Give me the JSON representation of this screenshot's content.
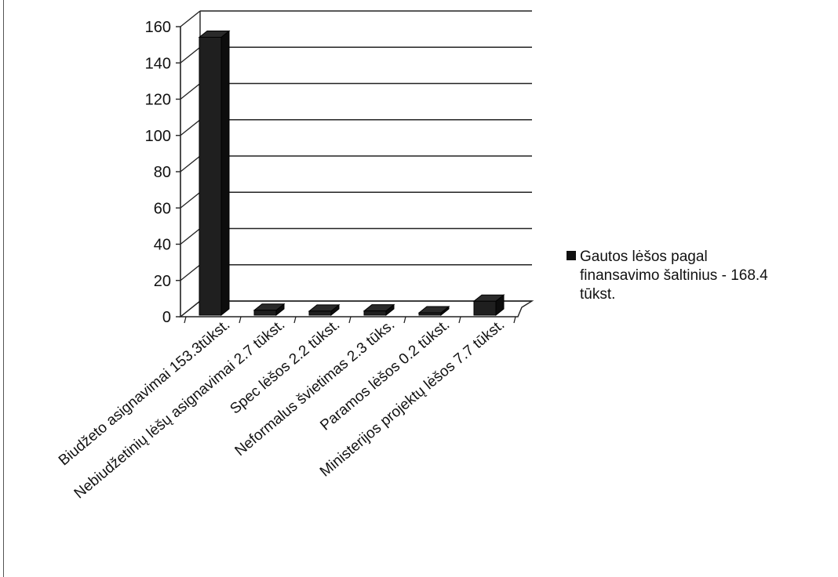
{
  "chart_data": {
    "type": "bar",
    "categories": [
      "Biudžeto asignavimai 153.3tūkst.",
      "Nebiudžetinių lėšų asignavimai 2.7 tūkst.",
      "Spec lėšos 2.2 tūkst.",
      "Neformalus švietimas 2.3 tūks.",
      "Paramos lėšos  0.2 tūkst.",
      "Ministerijos projektų lėšos 7.7 tūkst."
    ],
    "series": [
      {
        "name": "Gautos lėšos pagal finansavimo šaltinius  -  168.4 tūkst.",
        "values": [
          153.3,
          2.7,
          2.2,
          2.3,
          0.2,
          7.7
        ]
      }
    ],
    "ylim": [
      0,
      160
    ],
    "yticks": [
      0,
      20,
      40,
      60,
      80,
      100,
      120,
      140,
      160
    ],
    "gridlines": true,
    "legend_position": "right",
    "bar_color": "#1a1a1a"
  },
  "legend": {
    "line1": "Gautos lėšos pagal",
    "line2": "finansavimo šaltinius  -   168.4",
    "line3": "tūkst."
  }
}
